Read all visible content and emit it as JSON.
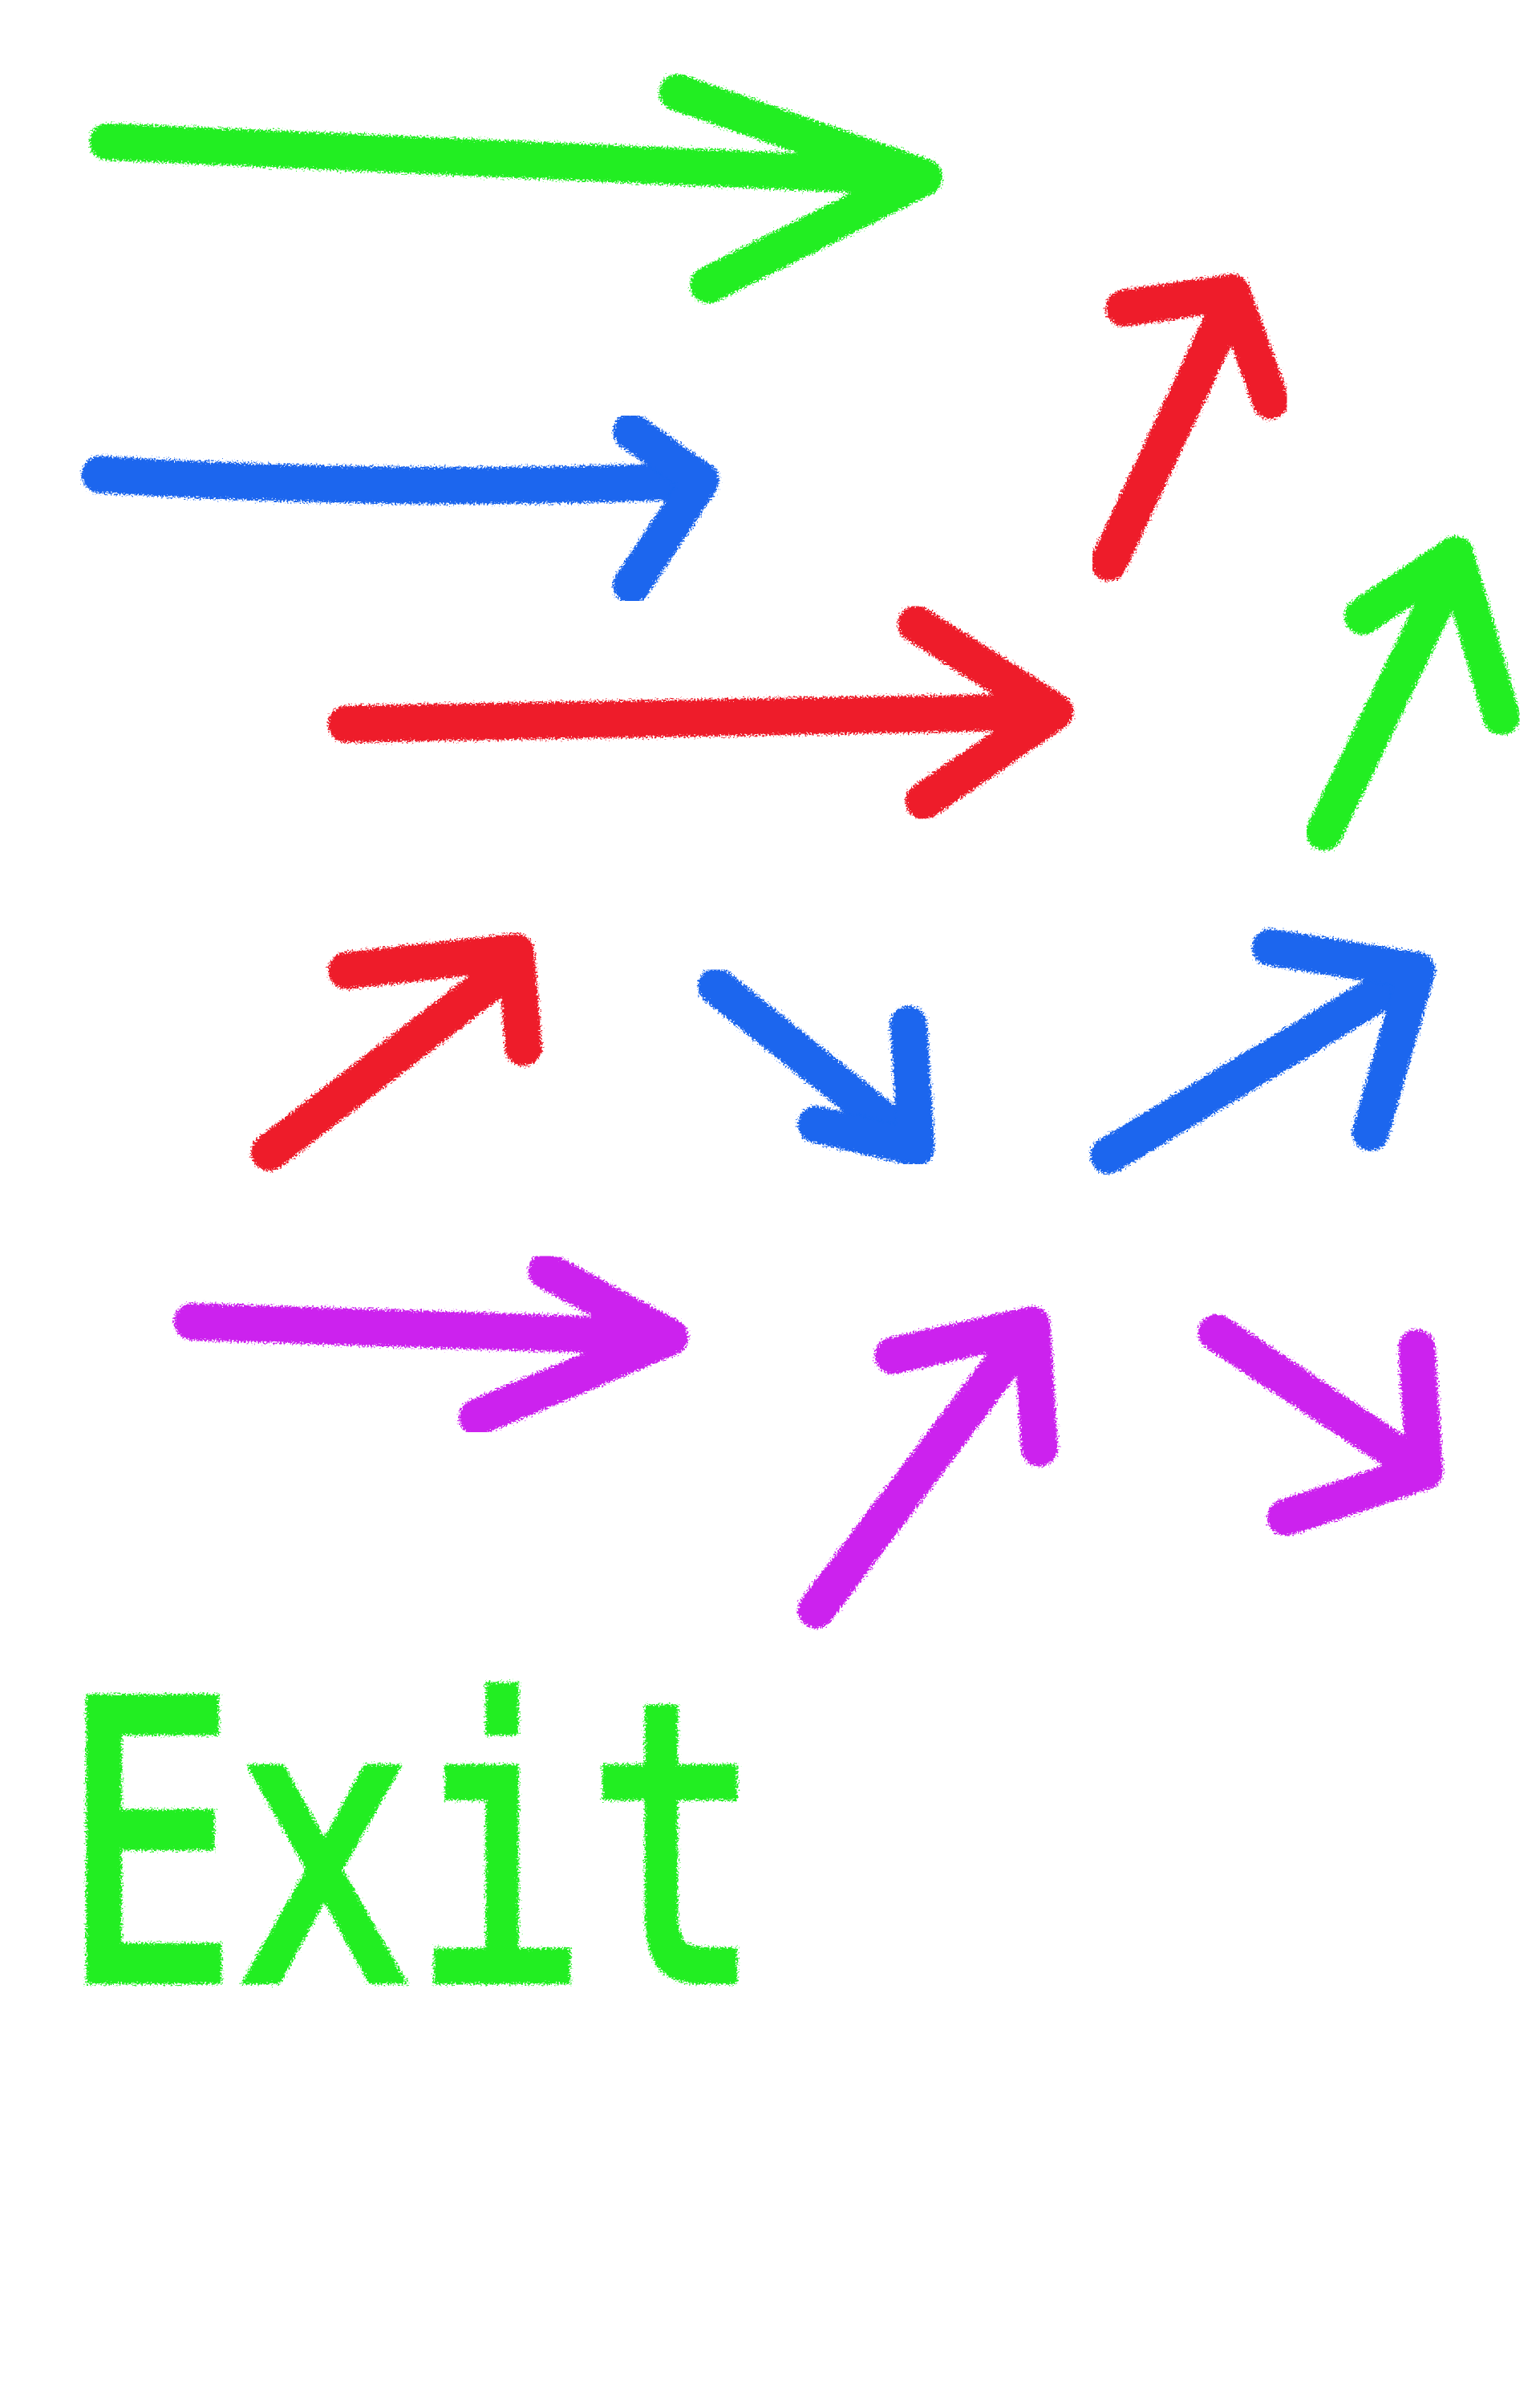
{
  "menu": {
    "exit": "Exit"
  }
}
